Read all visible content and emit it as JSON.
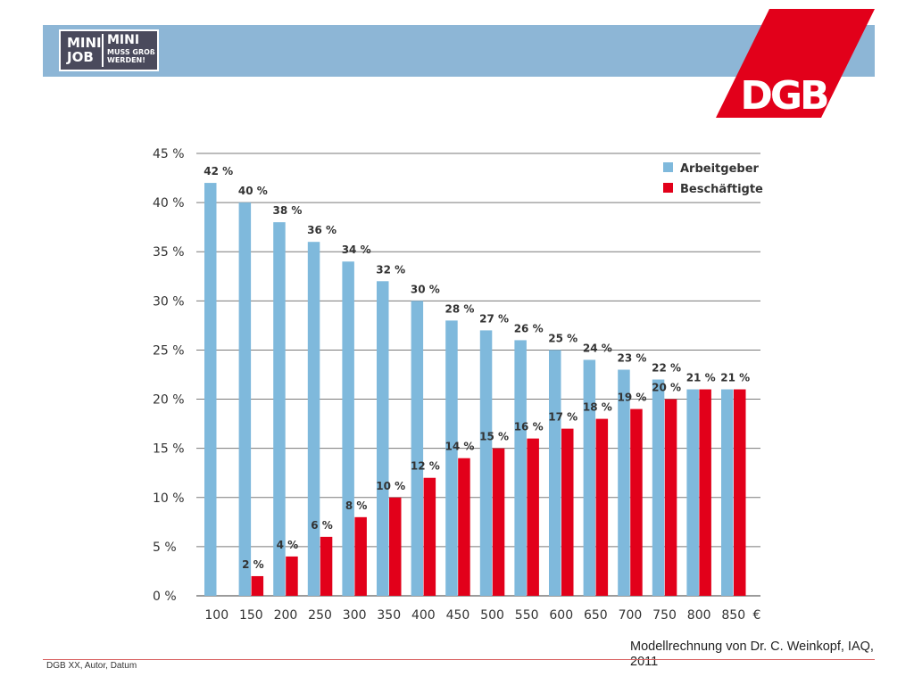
{
  "header": {
    "logo_mini_line1": "MINI",
    "logo_mini_line2": "JOB",
    "logo_slogan_line1": "MINI",
    "logo_slogan_line2": "MUSS GROß",
    "logo_slogan_line3": "WERDEN!",
    "dgb_logo_text": "DGB"
  },
  "colors": {
    "header_bar": "#8db6d6",
    "arbeitgeber": "#7fb9dc",
    "beschaeftigte": "#e2001a",
    "dgb_red": "#e2001a",
    "gridline": "#7a7a7a"
  },
  "chart_data": {
    "type": "bar",
    "categories": [
      "100",
      "150",
      "200",
      "250",
      "300",
      "350",
      "400",
      "450",
      "500",
      "550",
      "600",
      "650",
      "700",
      "750",
      "800",
      "850"
    ],
    "x_unit": "€",
    "series": [
      {
        "name": "Arbeitgeber",
        "values": [
          42,
          40,
          38,
          36,
          34,
          32,
          30,
          28,
          27,
          26,
          25,
          24,
          23,
          22,
          21,
          21
        ],
        "labels": [
          "42 %",
          "40 %",
          "38 %",
          "36 %",
          "34 %",
          "32 %",
          "30 %",
          "28 %",
          "27 %",
          "26 %",
          "25 %",
          "24 %",
          "23 %",
          "22 %",
          "21 %",
          "21 %"
        ]
      },
      {
        "name": "Beschäftigte",
        "values": [
          0,
          2,
          4,
          6,
          8,
          10,
          12,
          14,
          15,
          16,
          17,
          18,
          19,
          20,
          21,
          21
        ],
        "labels": [
          "",
          "2 %",
          "4 %",
          "6 %",
          "8 %",
          "10 %",
          "12 %",
          "14 %",
          "15 %",
          "16 %",
          "17 %",
          "18 %",
          "19 %",
          "20 %",
          "",
          ""
        ]
      }
    ],
    "y_ticks": [
      0,
      5,
      10,
      15,
      20,
      25,
      30,
      35,
      40,
      45
    ],
    "y_tick_labels": [
      "0 %",
      "5 %",
      "10 %",
      "15 %",
      "20 %",
      "25 %",
      "30 %",
      "35 %",
      "40 %",
      "45 %"
    ],
    "ylim": [
      0,
      45
    ],
    "grid": true,
    "legend_position": "top-right"
  },
  "source_note": "Modellrechnung von Dr. C. Weinkopf, IAQ, 2011",
  "footer": {
    "text": "DGB XX, Autor, Datum"
  }
}
